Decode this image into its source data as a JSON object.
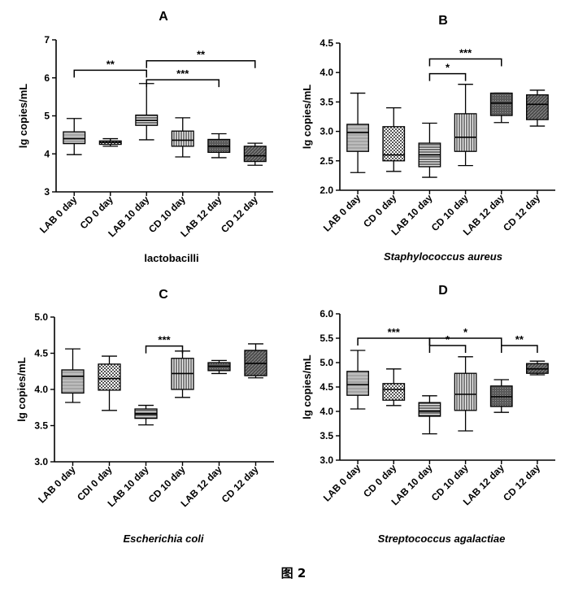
{
  "figure_caption": "图 2",
  "chart_data": [
    {
      "type": "box",
      "panel_label": "A",
      "xlabel": "lactobacilli",
      "xlabel_italic": false,
      "ylabel": "lg copies/mL",
      "ylim": [
        3,
        7
      ],
      "yticks": [
        3,
        4,
        5,
        6,
        7
      ],
      "ytick_labels": [
        "3",
        "4",
        "5",
        "6",
        "7"
      ],
      "categories": [
        "LAB 0 day",
        "CD 0 day",
        "LAB 10 day",
        "CD 10 day",
        "LAB 12 day",
        "CD 12 day"
      ],
      "boxes": [
        {
          "min": 3.98,
          "q1": 4.27,
          "median": 4.4,
          "q3": 4.58,
          "max": 4.93
        },
        {
          "min": 4.2,
          "q1": 4.25,
          "median": 4.3,
          "q3": 4.34,
          "max": 4.4
        },
        {
          "min": 4.37,
          "q1": 4.75,
          "median": 4.88,
          "q3": 5.02,
          "max": 5.85
        },
        {
          "min": 3.92,
          "q1": 4.2,
          "median": 4.36,
          "q3": 4.6,
          "max": 4.95
        },
        {
          "min": 3.9,
          "q1": 4.04,
          "median": 4.2,
          "q3": 4.38,
          "max": 4.53
        },
        {
          "min": 3.7,
          "q1": 3.8,
          "median": 3.95,
          "q3": 4.2,
          "max": 4.28
        }
      ],
      "significance": [
        {
          "from": 0,
          "to": 2,
          "label": "**",
          "y": 6.2
        },
        {
          "from": 2,
          "to": 4,
          "label": "***",
          "y": 5.95
        },
        {
          "from": 2,
          "to": 5,
          "label": "**",
          "y": 6.45
        }
      ]
    },
    {
      "type": "box",
      "panel_label": "B",
      "xlabel": "Staphylococcus aureus",
      "xlabel_italic": true,
      "ylabel": "lg copies/mL",
      "ylim": [
        2.0,
        4.5
      ],
      "yticks": [
        2.0,
        2.5,
        3.0,
        3.5,
        4.0,
        4.5
      ],
      "ytick_labels": [
        "2.0",
        "2.5",
        "3.0",
        "3.5",
        "4.0",
        "4.5"
      ],
      "categories": [
        "LAB 0 day",
        "CD 0 day",
        "LAB 10 day",
        "CD 10 day",
        "LAB 12 day",
        "CD 12 day"
      ],
      "boxes": [
        {
          "min": 2.3,
          "q1": 2.66,
          "median": 2.98,
          "q3": 3.12,
          "max": 3.65
        },
        {
          "min": 2.32,
          "q1": 2.5,
          "median": 2.6,
          "q3": 3.08,
          "max": 3.4
        },
        {
          "min": 2.22,
          "q1": 2.4,
          "median": 2.6,
          "q3": 2.8,
          "max": 3.14
        },
        {
          "min": 2.42,
          "q1": 2.66,
          "median": 2.9,
          "q3": 3.3,
          "max": 3.8
        },
        {
          "min": 3.15,
          "q1": 3.27,
          "median": 3.48,
          "q3": 3.65,
          "max": 3.65
        },
        {
          "min": 3.09,
          "q1": 3.2,
          "median": 3.46,
          "q3": 3.62,
          "max": 3.7
        }
      ],
      "significance": [
        {
          "from": 2,
          "to": 3,
          "label": "*",
          "y": 3.98
        },
        {
          "from": 2,
          "to": 4,
          "label": "***",
          "y": 4.23
        }
      ]
    },
    {
      "type": "box",
      "panel_label": "C",
      "xlabel": "Escherichia coli",
      "xlabel_italic": true,
      "ylabel": "lg copies/mL",
      "ylim": [
        3.0,
        5.0
      ],
      "yticks": [
        3.0,
        3.5,
        4.0,
        4.5,
        5.0
      ],
      "ytick_labels": [
        "3.0",
        "3.5",
        "4.0",
        "4.5",
        "5.0"
      ],
      "categories": [
        "LAB 0 day",
        "CDI 0 day",
        "LAB 10 day",
        "CD 10 day",
        "LAB 12 day",
        "CD 12 day"
      ],
      "boxes": [
        {
          "min": 3.82,
          "q1": 3.95,
          "median": 4.18,
          "q3": 4.27,
          "max": 4.56
        },
        {
          "min": 3.71,
          "q1": 3.99,
          "median": 4.15,
          "q3": 4.35,
          "max": 4.46
        },
        {
          "min": 3.51,
          "q1": 3.6,
          "median": 3.66,
          "q3": 3.73,
          "max": 3.78
        },
        {
          "min": 3.89,
          "q1": 4.0,
          "median": 4.22,
          "q3": 4.43,
          "max": 4.53
        },
        {
          "min": 4.22,
          "q1": 4.26,
          "median": 4.32,
          "q3": 4.37,
          "max": 4.4
        },
        {
          "min": 4.16,
          "q1": 4.19,
          "median": 4.36,
          "q3": 4.54,
          "max": 4.63
        }
      ],
      "significance": [
        {
          "from": 2,
          "to": 3,
          "label": "***",
          "y": 4.6
        }
      ]
    },
    {
      "type": "box",
      "panel_label": "D",
      "xlabel": "Streptococcus agalactiae",
      "xlabel_italic": true,
      "ylabel": "lg copies/mL",
      "ylim": [
        3.0,
        6.0
      ],
      "yticks": [
        3.0,
        3.5,
        4.0,
        4.5,
        5.0,
        5.5,
        6.0
      ],
      "ytick_labels": [
        "3.0",
        "3.5",
        "4.0",
        "4.5",
        "5.0",
        "5.5",
        "6.0"
      ],
      "categories": [
        "LAB 0 day",
        "CD 0 day",
        "LAB 10 day",
        "CD 10 day",
        "LAB 12 day",
        "CD 12 day"
      ],
      "boxes": [
        {
          "min": 4.05,
          "q1": 4.33,
          "median": 4.55,
          "q3": 4.82,
          "max": 5.25
        },
        {
          "min": 4.12,
          "q1": 4.23,
          "median": 4.45,
          "q3": 4.57,
          "max": 4.87
        },
        {
          "min": 3.54,
          "q1": 3.9,
          "median": 4.0,
          "q3": 4.18,
          "max": 4.32
        },
        {
          "min": 3.6,
          "q1": 4.02,
          "median": 4.35,
          "q3": 4.78,
          "max": 5.12
        },
        {
          "min": 3.98,
          "q1": 4.1,
          "median": 4.3,
          "q3": 4.52,
          "max": 4.65
        },
        {
          "min": 4.75,
          "q1": 4.78,
          "median": 4.87,
          "q3": 4.98,
          "max": 5.03
        }
      ],
      "significance": [
        {
          "from": 0,
          "to": 2,
          "label": "***",
          "y": 5.5
        },
        {
          "from": 2,
          "to": 3,
          "label": "*",
          "y": 5.35
        },
        {
          "from": 2,
          "to": 4,
          "label": "*",
          "y": 5.5
        },
        {
          "from": 4,
          "to": 5,
          "label": "**",
          "y": 5.35
        }
      ]
    }
  ]
}
